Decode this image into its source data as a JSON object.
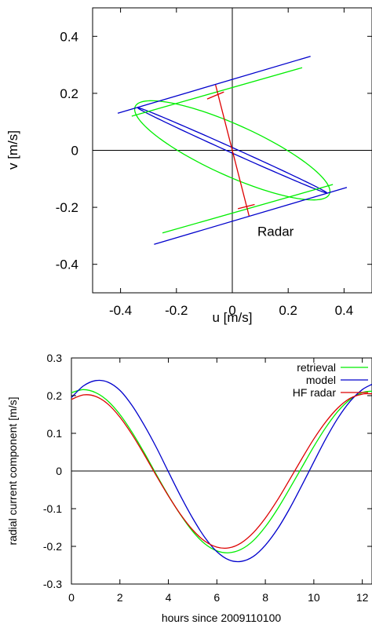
{
  "chart_data": [
    {
      "type": "line",
      "xlabel": "u [m/s]",
      "ylabel": "v [m/s]",
      "xlim": [
        -0.5,
        0.5
      ],
      "ylim": [
        -0.5,
        0.5
      ],
      "x_ticks": [
        "-0.4",
        "-0.2",
        "0",
        "0.2",
        "0.4"
      ],
      "y_ticks": [
        "0.4",
        "0.2",
        "0",
        "-0.2",
        "-0.4"
      ],
      "x_tick_values": [
        -0.4,
        -0.2,
        0,
        0.2,
        0.4
      ],
      "y_tick_values": [
        0.4,
        0.2,
        0,
        -0.2,
        -0.4
      ],
      "annotation": "Radar",
      "annotation_pos": [
        0.09,
        -0.3
      ],
      "colors": {
        "green": "#00ee00",
        "blue": "#0000cc",
        "red": "#dd0000",
        "axis": "#000000"
      },
      "ellipses": [
        {
          "name": "green ellipse",
          "color": "#00ee00",
          "center": [
            0,
            0
          ],
          "semi_major": 0.38,
          "semi_minor": 0.09,
          "major_dir": [
            0.34,
            -0.15
          ]
        },
        {
          "name": "blue ellipse",
          "color": "#0000cc",
          "center": [
            0,
            0
          ],
          "semi_major": 0.37,
          "semi_minor": 0.009,
          "major_dir": [
            0.34,
            -0.15
          ]
        }
      ],
      "segments": [
        {
          "color": "#00ee00",
          "points": [
            [
              -0.36,
              0.12
            ],
            [
              0.25,
              0.29
            ]
          ]
        },
        {
          "color": "#00ee00",
          "points": [
            [
              -0.25,
              -0.29
            ],
            [
              0.36,
              -0.12
            ]
          ]
        },
        {
          "color": "#0000cc",
          "points": [
            [
              -0.41,
              0.13
            ],
            [
              0.28,
              0.33
            ]
          ]
        },
        {
          "color": "#0000cc",
          "points": [
            [
              -0.28,
              -0.33
            ],
            [
              0.41,
              -0.13
            ]
          ]
        },
        {
          "color": "#dd0000",
          "points": [
            [
              -0.06,
              0.23
            ],
            [
              0.06,
              -0.23
            ]
          ]
        },
        {
          "color": "#dd0000",
          "points": [
            [
              -0.09,
              0.18
            ],
            [
              -0.03,
              0.205
            ]
          ]
        },
        {
          "color": "#dd0000",
          "points": [
            [
              0.02,
              -0.205
            ],
            [
              0.08,
              -0.19
            ]
          ]
        }
      ]
    },
    {
      "type": "line",
      "xlabel": "hours since 2009110100",
      "ylabel": "radial current component [m/s]",
      "xlim": [
        0,
        12.4
      ],
      "ylim": [
        -0.3,
        0.3
      ],
      "x_ticks": [
        "0",
        "2",
        "4",
        "6",
        "8",
        "10",
        "12"
      ],
      "y_ticks": [
        "0.3",
        "0.2",
        "0.1",
        "0",
        "-0.1",
        "-0.2",
        "-0.3"
      ],
      "x_tick_values": [
        0,
        2,
        4,
        6,
        8,
        10,
        12
      ],
      "y_tick_values": [
        0.3,
        0.2,
        0.1,
        0,
        -0.1,
        -0.2,
        -0.3
      ],
      "series": [
        {
          "name": "retrieval",
          "color": "#00ee00",
          "x": [
            0,
            0.5,
            1,
            1.5,
            2,
            2.5,
            3,
            3.5,
            4,
            4.5,
            5,
            5.5,
            6,
            6.5,
            7,
            7.5,
            8,
            8.5,
            9,
            9.5,
            10,
            10.5,
            11,
            11.5,
            12,
            12.4
          ],
          "y": [
            0.208,
            0.216,
            0.208,
            0.186,
            0.15,
            0.103,
            0.049,
            -0.009,
            -0.065,
            -0.116,
            -0.16,
            -0.193,
            -0.212,
            -0.217,
            -0.208,
            -0.185,
            -0.148,
            -0.101,
            -0.047,
            0.009,
            0.065,
            0.116,
            0.159,
            0.19,
            0.208,
            0.212
          ]
        },
        {
          "name": "model",
          "color": "#0000cc",
          "x": [
            0,
            0.5,
            1,
            1.5,
            2,
            2.5,
            3,
            3.5,
            4,
            4.5,
            5,
            5.5,
            6,
            6.5,
            7,
            7.5,
            8,
            8.5,
            9,
            9.5,
            10,
            10.5,
            11,
            11.5,
            12,
            12.4
          ],
          "y": [
            0.195,
            0.226,
            0.24,
            0.236,
            0.214,
            0.174,
            0.122,
            0.063,
            -0.002,
            -0.066,
            -0.125,
            -0.176,
            -0.214,
            -0.236,
            -0.24,
            -0.227,
            -0.197,
            -0.154,
            -0.1,
            -0.039,
            0.024,
            0.086,
            0.141,
            0.185,
            0.216,
            0.23
          ]
        },
        {
          "name": "HF radar",
          "color": "#dd0000",
          "x": [
            0,
            0.5,
            1,
            1.5,
            2,
            2.5,
            3,
            3.5,
            4,
            4.5,
            5,
            5.5,
            6,
            6.5,
            7,
            7.5,
            8,
            8.5,
            9,
            9.5,
            10,
            10.5,
            11,
            11.5,
            12,
            12.4
          ],
          "y": [
            0.19,
            0.202,
            0.198,
            0.178,
            0.143,
            0.097,
            0.044,
            -0.012,
            -0.066,
            -0.115,
            -0.156,
            -0.186,
            -0.202,
            -0.204,
            -0.191,
            -0.164,
            -0.125,
            -0.077,
            -0.023,
            0.032,
            0.085,
            0.131,
            0.168,
            0.193,
            0.204,
            0.205
          ]
        }
      ],
      "zero_line": true,
      "legend": "top-right"
    }
  ]
}
